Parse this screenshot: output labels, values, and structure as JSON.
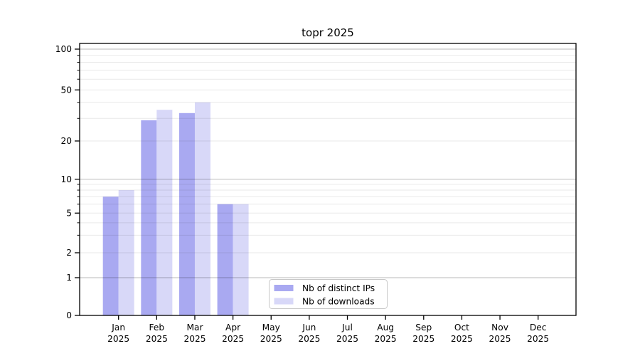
{
  "chart_data": {
    "type": "bar",
    "title": "topr 2025",
    "categories": [
      "Jan",
      "Feb",
      "Mar",
      "Apr",
      "May",
      "Jun",
      "Jul",
      "Aug",
      "Sep",
      "Oct",
      "Nov",
      "Dec"
    ],
    "year_label": "2025",
    "series": [
      {
        "name": "Nb of distinct IPs",
        "color": "#a9a9f1",
        "values": [
          7,
          29,
          33,
          6,
          0,
          0,
          0,
          0,
          0,
          0,
          0,
          0
        ]
      },
      {
        "name": "Nb of downloads",
        "color": "#d8d8f8",
        "values": [
          8,
          35,
          40,
          6,
          0,
          0,
          0,
          0,
          0,
          0,
          0,
          0
        ]
      }
    ],
    "xlabel": "",
    "ylabel": "",
    "ylim": [
      0,
      110
    ],
    "y_scale": "log-like (labeled ticks 0,1,2,5,10,20,50,100)",
    "y_tick_labels": [
      100,
      50,
      20,
      10,
      5,
      2,
      1,
      0
    ],
    "major_gridlines": [
      1,
      10,
      100
    ],
    "minor_gridlines": [
      2,
      3,
      4,
      5,
      6,
      7,
      8,
      9,
      20,
      30,
      40,
      50,
      60,
      70,
      80,
      90
    ],
    "grid": "on",
    "legend_position": "bottom-center-inside",
    "colors": {
      "axis": "#000000",
      "major_grid": "rgba(0,0,0,0.27)",
      "minor_grid": "rgba(0,0,0,0.085)",
      "legend_border": "#c8c8c8",
      "background": "#ffffff"
    }
  }
}
